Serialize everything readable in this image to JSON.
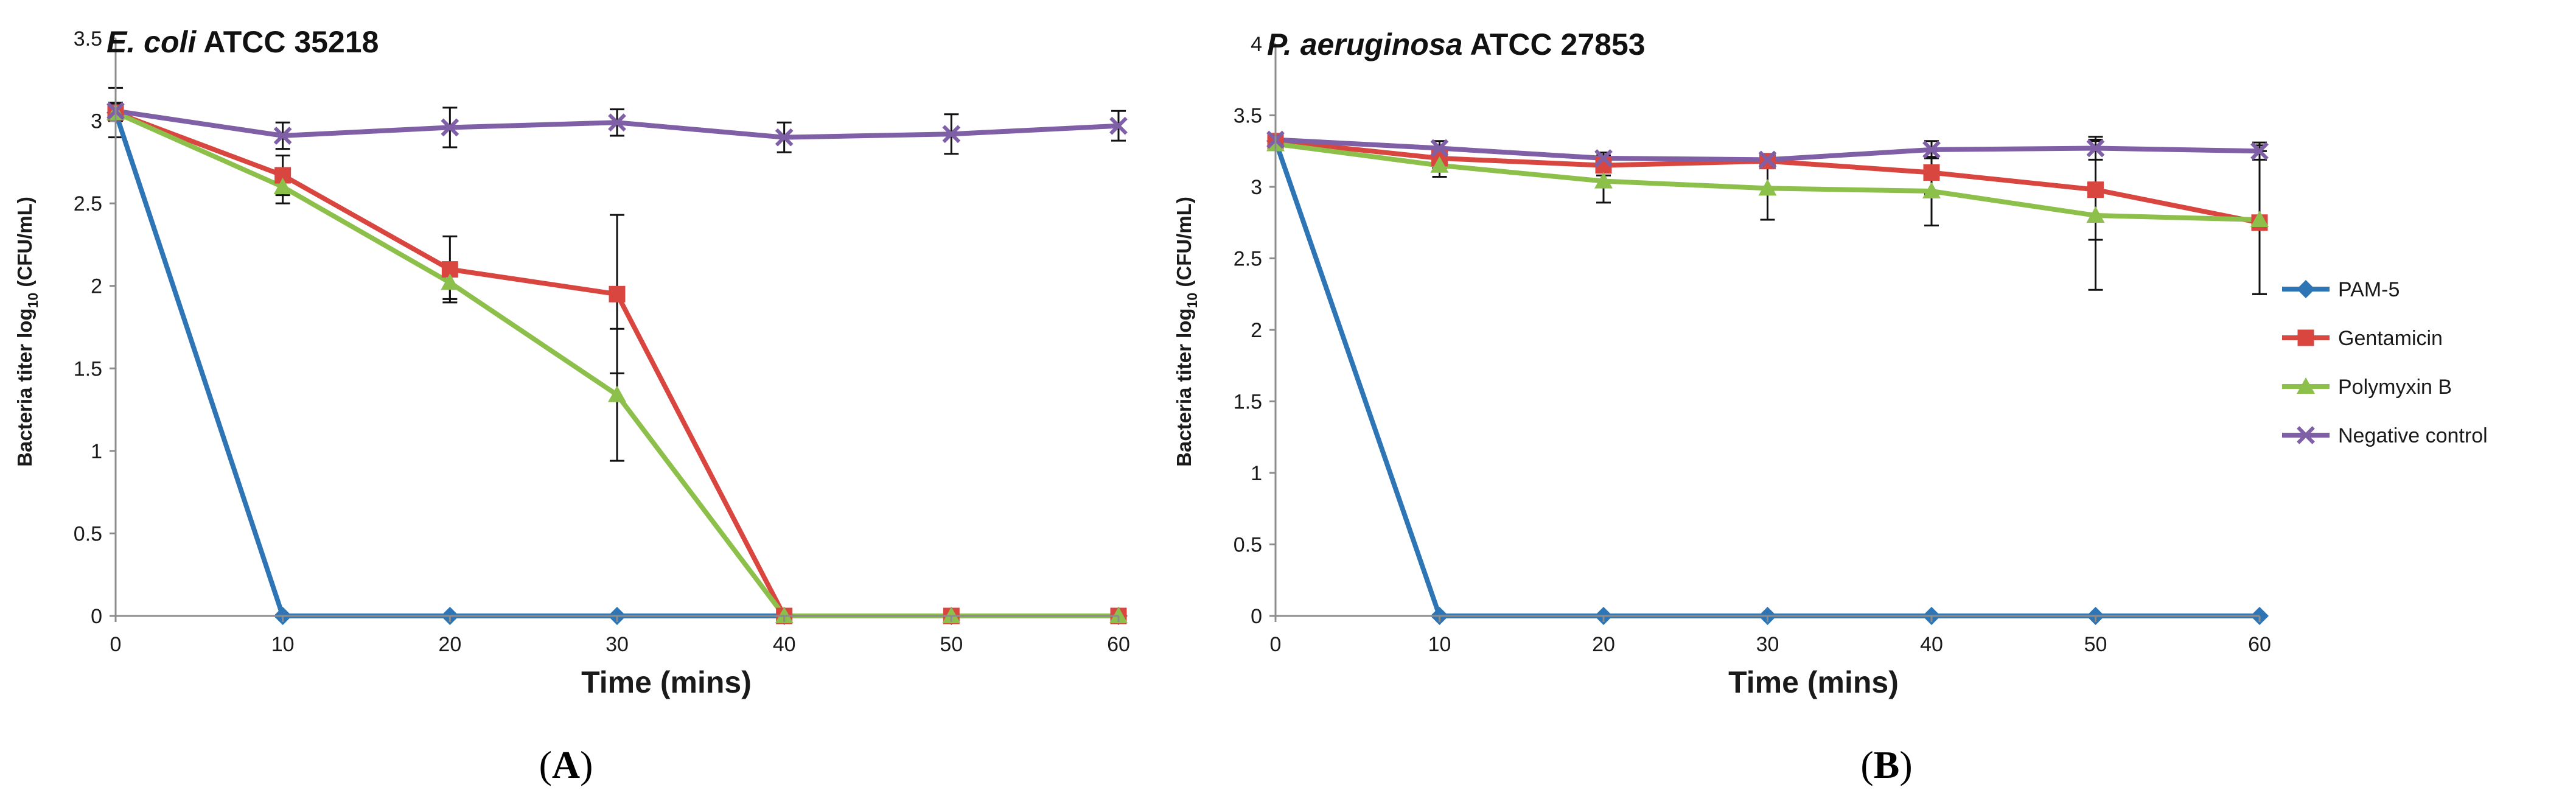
{
  "figure": {
    "panel_labels": [
      {
        "open": "(",
        "letter": "A",
        "close": ")"
      },
      {
        "open": "(",
        "letter": "B",
        "close": ")"
      }
    ],
    "legend": [
      {
        "name": "PAM-5",
        "color": "#2E75B6",
        "marker": "diamond"
      },
      {
        "name": "Gentamicin",
        "color": "#D9453F",
        "marker": "square"
      },
      {
        "name": "Polymyxin B",
        "color": "#8DBF4B",
        "marker": "triangle"
      },
      {
        "name": "Negative control",
        "color": "#7F5FA6",
        "marker": "x"
      }
    ]
  },
  "chart_data": [
    {
      "type": "line",
      "title_italic": "E. coli",
      "title_rest": " ATCC 35218",
      "xlabel": "Time (mins)",
      "ylabel_pre": "Bacteria titer log",
      "ylabel_sub": "10",
      "ylabel_post": " (CFU/mL)",
      "x": [
        0,
        10,
        20,
        30,
        40,
        50,
        60
      ],
      "xlim": [
        0,
        60
      ],
      "ylim": [
        0,
        3.5
      ],
      "yticks": [
        "0",
        "0.5",
        "1",
        "1.5",
        "2",
        "2.5",
        "3",
        "3.5"
      ],
      "ytick_values": [
        0,
        0.5,
        1,
        1.5,
        2,
        2.5,
        3,
        3.5
      ],
      "series": [
        {
          "name": "PAM-5",
          "color": "#2E75B6",
          "marker": "diamond",
          "values": [
            3.05,
            0,
            0,
            0,
            0,
            0,
            0
          ],
          "errors": [
            0.15,
            0,
            0,
            0,
            0,
            0,
            0
          ]
        },
        {
          "name": "Gentamicin",
          "color": "#D9453F",
          "marker": "square",
          "values": [
            3.05,
            2.67,
            2.1,
            1.95,
            0,
            0,
            0
          ],
          "errors": [
            0.05,
            0.12,
            0.2,
            0.48,
            0,
            0,
            0
          ]
        },
        {
          "name": "Polymyxin B",
          "color": "#8DBF4B",
          "marker": "triangle",
          "values": [
            3.05,
            2.6,
            2.02,
            1.34,
            0,
            0,
            0
          ],
          "errors": [
            0.05,
            0.1,
            0.1,
            0.4,
            0,
            0,
            0
          ]
        },
        {
          "name": "Negative control",
          "color": "#7F5FA6",
          "marker": "x",
          "values": [
            3.06,
            2.91,
            2.96,
            2.99,
            2.9,
            2.92,
            2.97
          ],
          "errors": [
            0.05,
            0.08,
            0.12,
            0.08,
            0.09,
            0.12,
            0.09
          ]
        }
      ]
    },
    {
      "type": "line",
      "title_italic": "P. aeruginosa",
      "title_rest": " ATCC 27853",
      "xlabel": "Time (mins)",
      "ylabel_pre": "Bacteria titer log",
      "ylabel_sub": "10",
      "ylabel_post": " (CFU/mL)",
      "x": [
        0,
        10,
        20,
        30,
        40,
        50,
        60
      ],
      "xlim": [
        0,
        60
      ],
      "ylim": [
        0,
        4
      ],
      "yticks": [
        "0",
        "0.5",
        "1",
        "1.5",
        "2",
        "2.5",
        "3",
        "3.5",
        "4"
      ],
      "ytick_values": [
        0,
        0.5,
        1,
        1.5,
        2,
        2.5,
        3,
        3.5,
        4
      ],
      "series": [
        {
          "name": "PAM-5",
          "color": "#2E75B6",
          "marker": "diamond",
          "values": [
            3.32,
            0,
            0,
            0,
            0,
            0,
            0
          ],
          "errors": [
            0.03,
            0,
            0,
            0,
            0,
            0,
            0
          ]
        },
        {
          "name": "Gentamicin",
          "color": "#D9453F",
          "marker": "square",
          "values": [
            3.32,
            3.2,
            3.15,
            3.18,
            3.1,
            2.98,
            2.75
          ],
          "errors": [
            0.03,
            0.07,
            0.07,
            0.05,
            0.15,
            0.35,
            0.5
          ]
        },
        {
          "name": "Polymyxin B",
          "color": "#8DBF4B",
          "marker": "triangle",
          "values": [
            3.3,
            3.15,
            3.04,
            2.99,
            2.97,
            2.8,
            2.77
          ],
          "errors": [
            0.03,
            0.08,
            0.15,
            0.22,
            0.24,
            0.52,
            0.52
          ]
        },
        {
          "name": "Negative control",
          "color": "#7F5FA6",
          "marker": "x",
          "values": [
            3.33,
            3.27,
            3.2,
            3.19,
            3.26,
            3.27,
            3.25
          ],
          "errors": [
            0.03,
            0.05,
            0.04,
            0.04,
            0.06,
            0.08,
            0.06
          ]
        }
      ]
    }
  ]
}
